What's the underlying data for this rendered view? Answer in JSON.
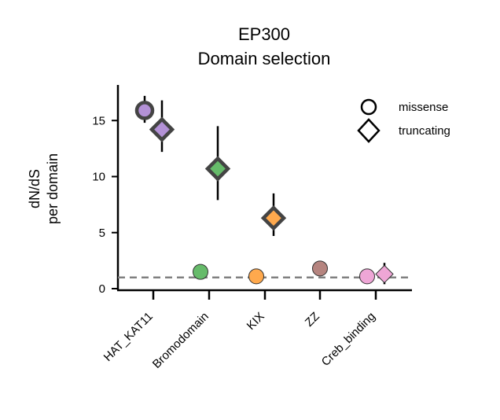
{
  "chart_data": {
    "type": "scatter",
    "title_line1": "EP300",
    "title_line2": "Domain selection",
    "ylabel_line1": "dN/dS",
    "ylabel_line2": "per domain",
    "xlabel": "",
    "ylim": [
      0,
      18
    ],
    "yticks": [
      0,
      5,
      10,
      15
    ],
    "categories": [
      "HAT_KAT11",
      "Bromodomain",
      "KIX",
      "ZZ",
      "Creb_binding"
    ],
    "category_colors": [
      "#b391d6",
      "#66bb6a",
      "#ffa94d",
      "#b5847f",
      "#eea6d6"
    ],
    "reference_line": {
      "y": 1,
      "style": "dashed",
      "color": "#808080"
    },
    "legend": {
      "position": "top-right",
      "entries": [
        "missense",
        "truncating"
      ]
    },
    "series": [
      {
        "name": "missense",
        "marker": "circle",
        "points": [
          {
            "category": "HAT_KAT11",
            "y": 15.9,
            "err_low": 14.8,
            "err_high": 17.2,
            "significant": true
          },
          {
            "category": "Bromodomain",
            "y": 1.5,
            "significant": false
          },
          {
            "category": "KIX",
            "y": 1.1,
            "significant": false
          },
          {
            "category": "ZZ",
            "y": 1.8,
            "significant": false
          },
          {
            "category": "Creb_binding",
            "y": 1.1,
            "significant": false
          }
        ]
      },
      {
        "name": "truncating",
        "marker": "diamond",
        "points": [
          {
            "category": "HAT_KAT11",
            "y": 14.2,
            "err_low": 12.2,
            "err_high": 16.8,
            "significant": true
          },
          {
            "category": "Bromodomain",
            "y": 10.7,
            "err_low": 7.9,
            "err_high": 14.5,
            "significant": true
          },
          {
            "category": "KIX",
            "y": 6.3,
            "err_low": 4.7,
            "err_high": 8.5,
            "significant": true
          },
          {
            "category": "Creb_binding",
            "y": 1.3,
            "err_low": 0.4,
            "err_high": 2.3,
            "significant": false
          }
        ]
      }
    ]
  }
}
